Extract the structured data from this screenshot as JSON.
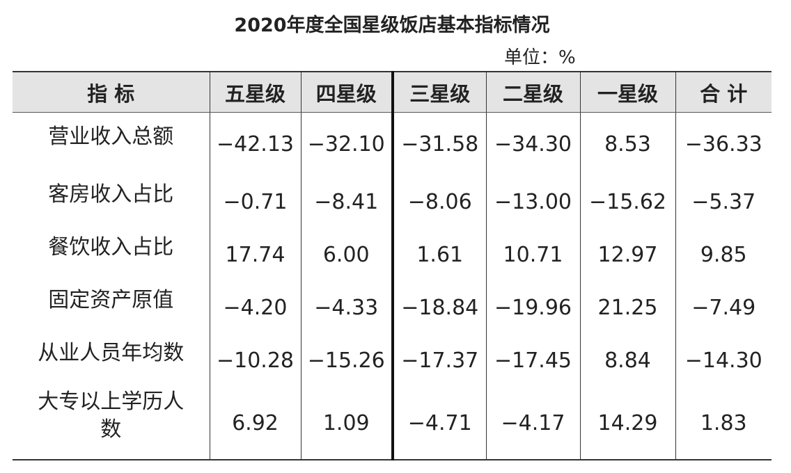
{
  "title": "2020年度全国星级饭店基本指标情况",
  "unit": "单位：%",
  "table": {
    "header": [
      "指 标",
      "五星级",
      "四星级",
      "三星级",
      "二星级",
      "一星级",
      "合 计"
    ],
    "rows": [
      [
        "营业收入总额",
        "−42.13",
        "−32.10",
        "−31.58",
        "−34.30",
        "8.53",
        "−36.33"
      ],
      [
        "客房收入占比",
        "−0.71",
        "−8.41",
        "−8.06",
        "−13.00",
        "−15.62",
        "−5.37"
      ],
      [
        "餐饮收入占比",
        "17.74",
        "6.00",
        "1.61",
        "10.71",
        "12.97",
        "9.85"
      ],
      [
        "固定资产原值",
        "−4.20",
        "−4.33",
        "−18.84",
        "−19.96",
        "21.25",
        "−7.49"
      ],
      [
        "从业人员年均数",
        "−10.28",
        "−15.26",
        "−17.37",
        "−17.45",
        "8.84",
        "−14.30"
      ],
      [
        "大专以上学历人数",
        "6.92",
        "1.09",
        "−4.71",
        "−4.17",
        "14.29",
        "1.83"
      ]
    ]
  }
}
